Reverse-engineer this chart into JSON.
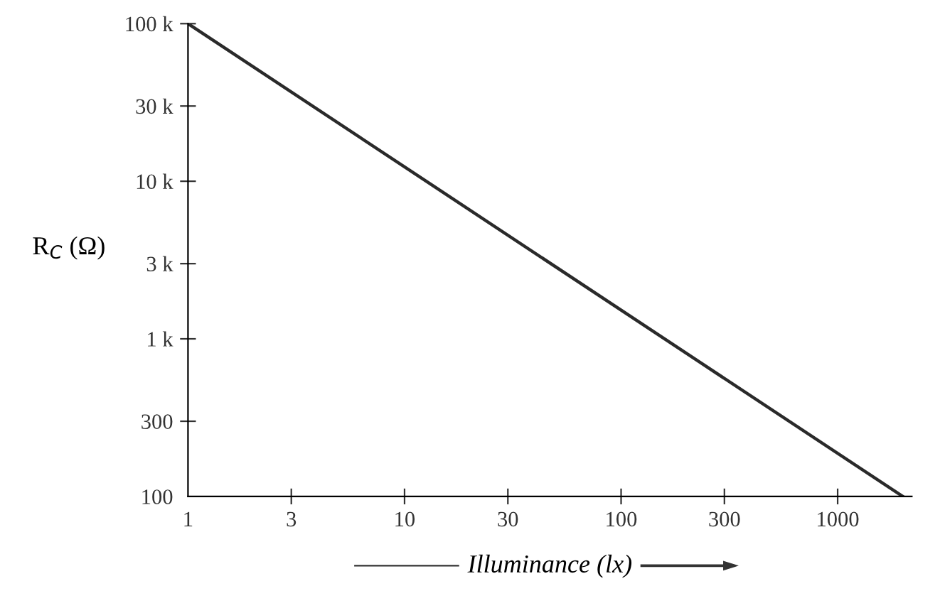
{
  "chart_data": {
    "type": "line",
    "xlabel": "Illuminance (lx)",
    "ylabel": "R$_{C}$ (Ω)",
    "x": [
      1,
      2000
    ],
    "series": [
      {
        "color": "#2a2a2a",
        "values": [
          100000,
          100
        ]
      }
    ],
    "log": "xy",
    "grid": false,
    "legend": false,
    "marker": "none",
    "line_style": "solid",
    "xlim": [
      1,
      2200
    ],
    "ylim": [
      100,
      100000
    ],
    "xticks": [
      1,
      3,
      10,
      30,
      100,
      300,
      1000
    ],
    "yticks": [
      {
        "value": 100,
        "label": "100"
      },
      {
        "value": 300,
        "label": "300"
      },
      {
        "value": 1000,
        "label": "1 k"
      },
      {
        "value": 3000,
        "label": "3 k"
      },
      {
        "value": 10000,
        "label": "10 k"
      },
      {
        "value": 30000,
        "label": "30 k"
      },
      {
        "value": 100000,
        "label": "100 k"
      }
    ]
  }
}
